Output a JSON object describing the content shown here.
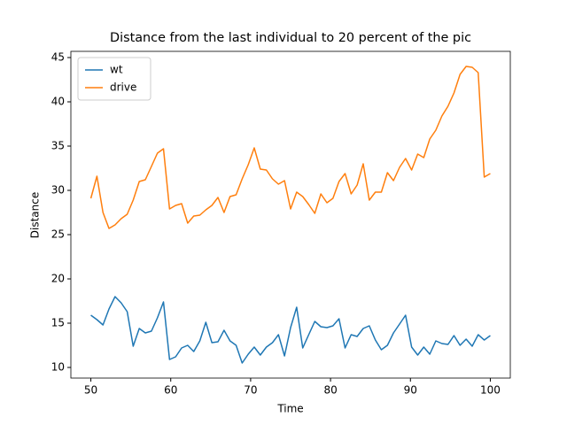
{
  "chart_data": {
    "type": "line",
    "title": "Distance from the last individual to 20 percent of the pic",
    "xlabel": "Time",
    "ylabel": "Distance",
    "x": [
      50,
      50.76,
      51.52,
      52.27,
      53.03,
      53.79,
      54.55,
      55.3,
      56.06,
      56.82,
      57.58,
      58.33,
      59.09,
      59.85,
      60.61,
      61.36,
      62.12,
      62.88,
      63.64,
      64.39,
      65.15,
      65.91,
      66.67,
      67.42,
      68.18,
      68.94,
      69.7,
      70.45,
      71.21,
      71.97,
      72.73,
      73.48,
      74.24,
      75.0,
      75.76,
      76.52,
      77.27,
      78.03,
      78.79,
      79.55,
      80.3,
      81.06,
      81.82,
      82.58,
      83.33,
      84.09,
      84.85,
      85.61,
      86.36,
      87.12,
      87.88,
      88.64,
      89.39,
      90.15,
      90.91,
      91.67,
      92.42,
      93.18,
      93.94,
      94.7,
      95.45,
      96.21,
      96.97,
      97.73,
      98.48,
      99.24,
      100
    ],
    "series": [
      {
        "name": "wt",
        "color": "#1f77b4",
        "values": [
          15.9,
          15.4,
          14.8,
          16.6,
          18.0,
          17.3,
          16.3,
          12.4,
          14.4,
          13.9,
          14.1,
          15.6,
          17.4,
          10.9,
          11.2,
          12.2,
          12.5,
          11.8,
          13.0,
          15.1,
          12.8,
          12.9,
          14.2,
          13.0,
          12.5,
          10.5,
          11.5,
          12.3,
          11.4,
          12.3,
          12.8,
          13.7,
          11.3,
          14.5,
          16.8,
          12.2,
          13.7,
          15.2,
          14.6,
          14.5,
          14.7,
          15.5,
          12.2,
          13.7,
          13.5,
          14.4,
          14.7,
          13.1,
          12.0,
          12.5,
          13.9,
          14.9,
          15.9,
          12.3,
          11.4,
          12.3,
          11.5,
          13.0,
          12.7,
          12.6,
          13.6,
          12.5,
          13.2,
          12.4,
          13.7,
          13.1,
          13.6
        ]
      },
      {
        "name": "drive",
        "color": "#ff7f0e",
        "values": [
          29.1,
          31.6,
          27.5,
          25.7,
          26.1,
          26.8,
          27.3,
          28.9,
          31.0,
          31.2,
          32.7,
          34.2,
          34.7,
          27.9,
          28.3,
          28.5,
          26.3,
          27.1,
          27.2,
          27.8,
          28.3,
          29.2,
          27.5,
          29.3,
          29.5,
          31.3,
          32.9,
          34.8,
          32.4,
          32.3,
          31.3,
          30.7,
          31.1,
          27.9,
          29.8,
          29.3,
          28.4,
          27.4,
          29.6,
          28.6,
          29.1,
          31.0,
          31.9,
          29.6,
          30.6,
          33.0,
          28.9,
          29.8,
          29.8,
          32.0,
          31.1,
          32.6,
          33.6,
          32.3,
          34.1,
          33.7,
          35.8,
          36.8,
          38.4,
          39.5,
          41.0,
          43.1,
          44.0,
          43.9,
          43.3,
          31.5,
          31.9
        ]
      }
    ],
    "xlim": [
      47.5,
      102.5
    ],
    "xticks": [
      50,
      60,
      70,
      80,
      90,
      100
    ],
    "ylim": [
      8.8,
      45.7
    ],
    "yticks": [
      10,
      15,
      20,
      25,
      30,
      35,
      40,
      45
    ],
    "legend": "upper left",
    "grid": false
  }
}
